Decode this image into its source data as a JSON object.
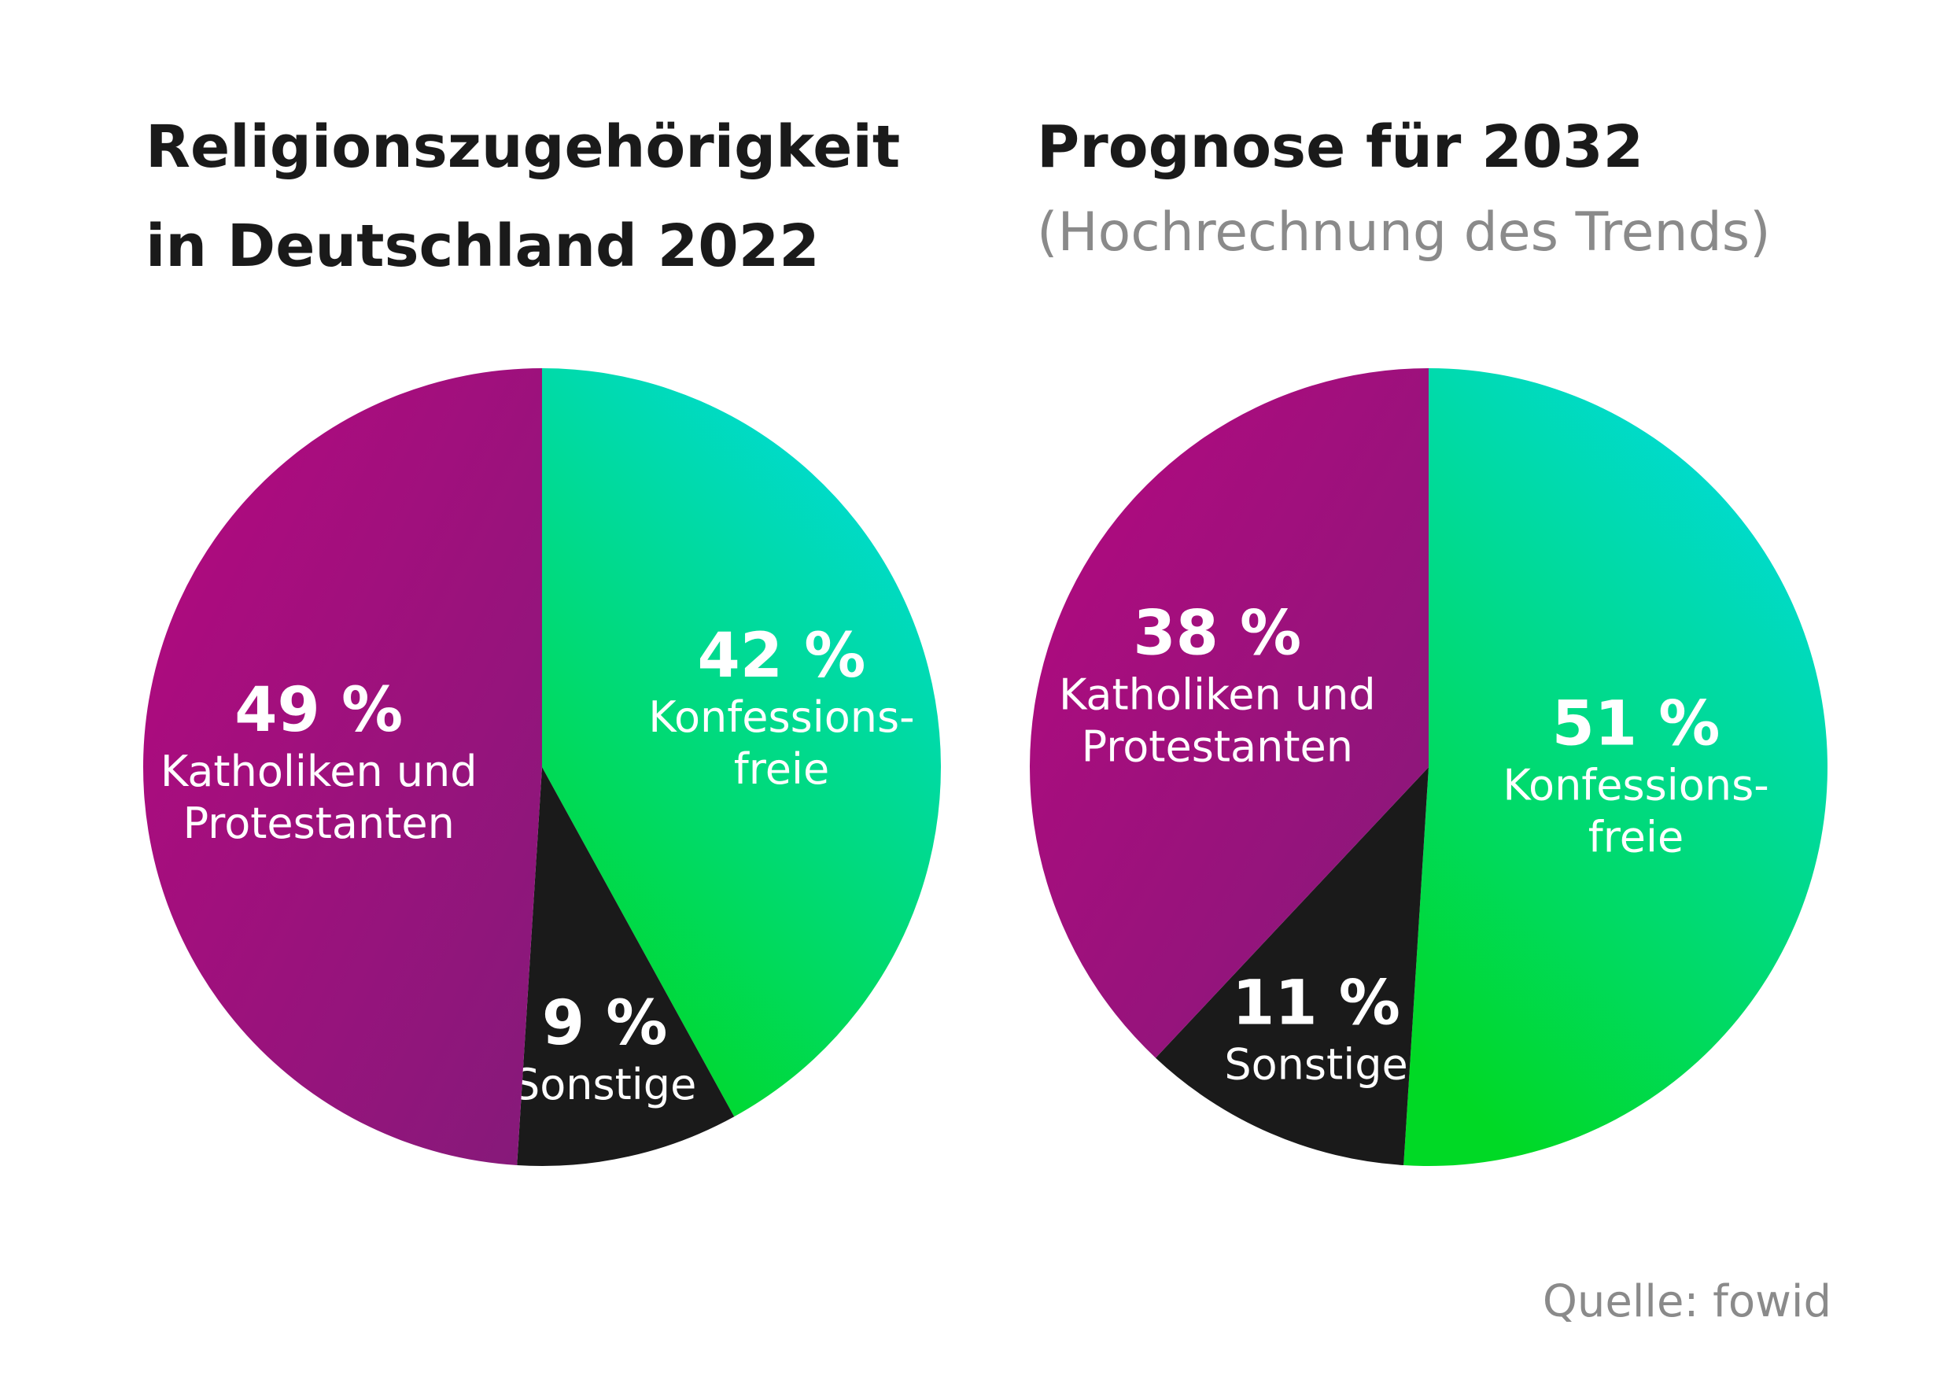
{
  "titles": {
    "left_line1": "Religionszugehörigkeit",
    "left_line2": "in Deutschland 2022",
    "right": "Prognose für 2032",
    "right_subtitle": "(Hochrechnung des Trends)"
  },
  "source": "Quelle: fowid",
  "colors": {
    "christian_gradient": [
      "#b5087f",
      "#851a7a"
    ],
    "free_gradient": [
      "#00dbe6",
      "#00d925"
    ],
    "other": "#1a1a1a",
    "text_on_slice": "#ffffff",
    "title": "#1a1a1a",
    "muted": "#8a8a8a"
  },
  "chart_data": [
    {
      "type": "pie",
      "title": "Religionszugehörigkeit in Deutschland 2022",
      "slices": [
        {
          "key": "free",
          "value": 42,
          "percent": "42 %",
          "label_lines": [
            "Konfessions-",
            "freie"
          ]
        },
        {
          "key": "other",
          "value": 9,
          "percent": "9 %",
          "label_lines": [
            "Sonstige"
          ]
        },
        {
          "key": "christian",
          "value": 49,
          "percent": "49 %",
          "label_lines": [
            "Katholiken und",
            "Protestanten"
          ]
        }
      ]
    },
    {
      "type": "pie",
      "title": "Prognose für 2032",
      "subtitle": "(Hochrechnung des Trends)",
      "slices": [
        {
          "key": "free",
          "value": 51,
          "percent": "51 %",
          "label_lines": [
            "Konfessions-",
            "freie"
          ]
        },
        {
          "key": "other",
          "value": 11,
          "percent": "11 %",
          "label_lines": [
            "Sonstige"
          ]
        },
        {
          "key": "christian",
          "value": 38,
          "percent": "38 %",
          "label_lines": [
            "Katholiken und",
            "Protestanten"
          ]
        }
      ]
    }
  ]
}
